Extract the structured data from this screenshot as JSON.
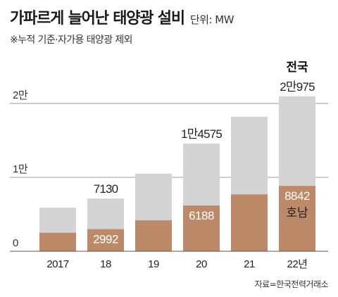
{
  "title": "가파르게 늘어난 태양광 설비",
  "unit_label": "단위: MW",
  "subtitle": "※누적 기준·자가용 태양광 제외",
  "source": "자료=한국전력거래소",
  "colors": {
    "total": "#d4d4d4",
    "honam": "#bc8a68",
    "grid": "#9a9a9a"
  },
  "chart_data": {
    "type": "bar",
    "categories": [
      "2017",
      "18",
      "19",
      "20",
      "21",
      "22년"
    ],
    "ylim": [
      0,
      22000
    ],
    "yticks": [
      {
        "value": 0,
        "label": "0"
      },
      {
        "value": 10000,
        "label": "1만"
      },
      {
        "value": 20000,
        "label": "2만"
      }
    ],
    "series": [
      {
        "name": "",
        "values": [
          5900,
          7130,
          10500,
          14575,
          18200,
          20975
        ]
      },
      {
        "name": "호남",
        "values": [
          2500,
          2992,
          4200,
          6188,
          7700,
          8842
        ]
      }
    ],
    "total_labels": [
      "",
      "7130",
      "",
      "1만4575",
      "",
      "2만975"
    ],
    "honam_labels": [
      "",
      "2992",
      "",
      "6188",
      "",
      "8842"
    ],
    "last_bar_top_label": "전국",
    "last_bar_inner_label": "호남"
  }
}
